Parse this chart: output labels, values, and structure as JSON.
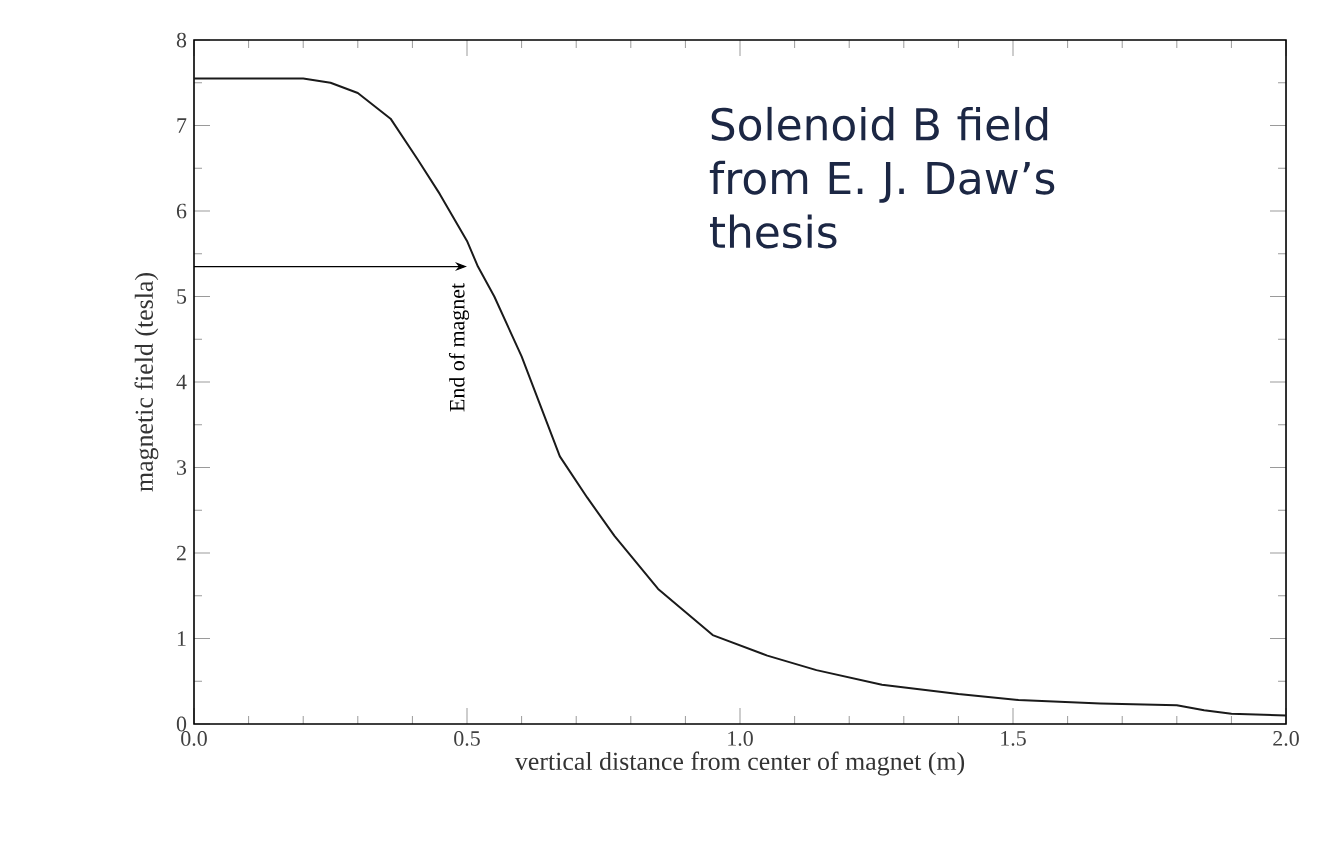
{
  "chart_data": {
    "type": "line",
    "xlabel": "vertical distance from center of magnet (m)",
    "ylabel": "magnetic field (tesla)",
    "x": [
      0,
      0.1,
      0.2,
      0.25,
      0.3,
      0.36,
      0.41,
      0.45,
      0.5,
      0.52,
      0.55,
      0.6,
      0.67,
      0.72,
      0.77,
      0.85,
      0.95,
      1.05,
      1.14,
      1.26,
      1.4,
      1.51,
      1.66,
      1.8,
      1.85,
      1.9,
      2.0
    ],
    "series": [
      {
        "color": "#1a1a1a",
        "values": [
          7.55,
          7.55,
          7.55,
          7.5,
          7.38,
          7.08,
          6.6,
          6.2,
          5.65,
          5.35,
          5.0,
          4.3,
          3.13,
          2.65,
          2.2,
          1.58,
          1.04,
          0.8,
          0.63,
          0.46,
          0.35,
          0.28,
          0.24,
          0.22,
          0.16,
          0.12,
          0.1
        ]
      }
    ],
    "xlim": [
      0,
      2.0
    ],
    "ylim": [
      0,
      8
    ],
    "xticks": [
      {
        "value": 0,
        "label": "0.0"
      },
      0.5,
      {
        "value": 1,
        "label": "1.0"
      },
      1.5,
      {
        "value": 2,
        "label": "2.0"
      }
    ],
    "yticks": [
      0,
      1,
      2,
      3,
      4,
      5,
      6,
      7,
      8
    ],
    "grid": false,
    "legend": false,
    "marker": "none",
    "line_style": "solid",
    "annotations": [
      {
        "text": "End of magnet",
        "x": 0.5,
        "y": 5.35
      },
      "Solenoid B field from E. J. Daw’s thesis"
    ]
  }
}
